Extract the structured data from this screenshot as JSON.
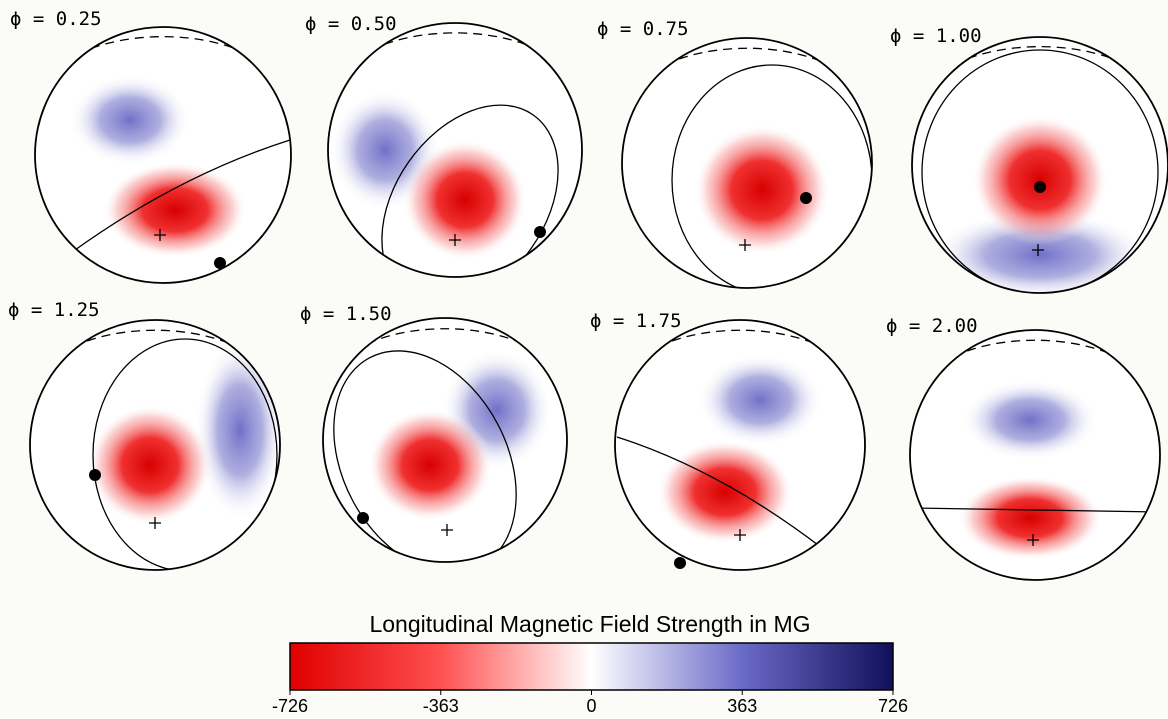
{
  "panels": [
    {
      "label": "ϕ = 0.25"
    },
    {
      "label": "ϕ = 0.50"
    },
    {
      "label": "ϕ = 0.75"
    },
    {
      "label": "ϕ = 1.00"
    },
    {
      "label": "ϕ = 1.25"
    },
    {
      "label": "ϕ = 1.50"
    },
    {
      "label": "ϕ = 1.75"
    },
    {
      "label": "ϕ = 2.00"
    }
  ],
  "colorbar": {
    "title": "Longitudinal Magnetic Field Strength in MG",
    "lim": [
      -726,
      726
    ],
    "ticks": [
      -726,
      -363,
      0,
      363,
      726
    ],
    "colors": [
      "#e00000",
      "#ff5050",
      "#ffffff",
      "#6a6ac8",
      "#10105a"
    ]
  }
}
